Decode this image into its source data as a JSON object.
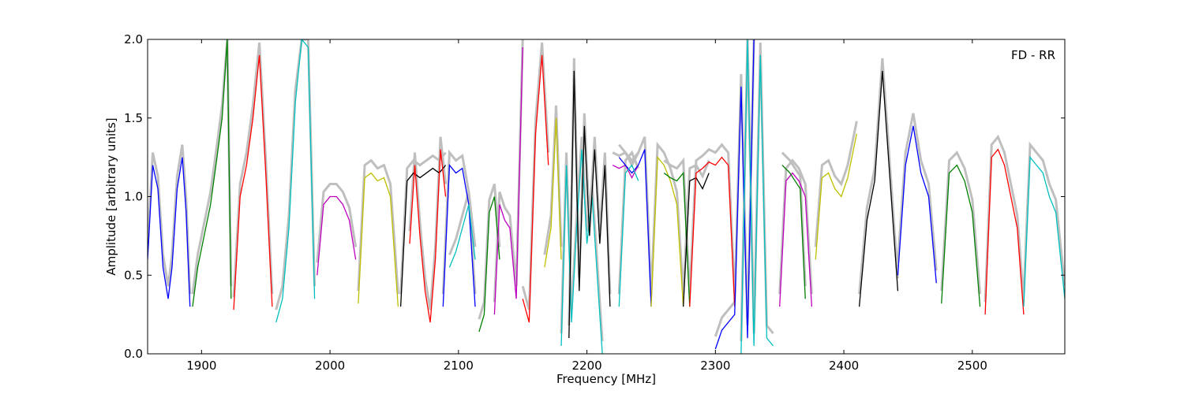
{
  "chart_data": {
    "type": "line",
    "title": "",
    "xlabel": "Frequency [MHz]",
    "ylabel": "Amplitude [arbitrary units]",
    "annotation": "FD - RR",
    "annotation_position": "top-right",
    "xlim": [
      1858,
      2572
    ],
    "ylim": [
      0.0,
      2.0
    ],
    "xticks": [
      1900,
      2000,
      2100,
      2200,
      2300,
      2400,
      2500
    ],
    "yticks": [
      0.0,
      0.5,
      1.0,
      1.5,
      2.0
    ],
    "xtick_labels": [
      "1900",
      "2000",
      "2100",
      "2200",
      "2300",
      "2400",
      "2500"
    ],
    "ytick_labels": [
      "0.0",
      "0.5",
      "1.0",
      "1.5",
      "2.0"
    ],
    "grid": false,
    "legend": false,
    "background_trace_color": "#bfbfbf",
    "series": [
      {
        "color": "#0000ff",
        "x": [
          1858,
          1862,
          1866,
          1870,
          1874,
          1877,
          1881,
          1885,
          1888,
          1891
        ],
        "y": [
          0.6,
          1.2,
          1.05,
          0.55,
          0.35,
          0.55,
          1.05,
          1.25,
          0.9,
          0.3
        ]
      },
      {
        "color": "#007f00",
        "x": [
          1893,
          1897,
          1902,
          1907,
          1912,
          1916,
          1920,
          1923
        ],
        "y": [
          0.3,
          0.55,
          0.75,
          0.95,
          1.25,
          1.5,
          2.0,
          0.35
        ]
      },
      {
        "color": "#ff0000",
        "x": [
          1925,
          1930,
          1935,
          1940,
          1945,
          1950,
          1955
        ],
        "y": [
          0.28,
          1.0,
          1.2,
          1.5,
          1.9,
          1.15,
          0.3
        ]
      },
      {
        "color": "#00bfbf",
        "x": [
          1958,
          1963,
          1968,
          1973,
          1978,
          1983,
          1988
        ],
        "y": [
          0.2,
          0.35,
          0.8,
          1.6,
          2.0,
          1.95,
          0.35
        ]
      },
      {
        "color": "#bf00bf",
        "x": [
          1990,
          1995,
          2000,
          2005,
          2010,
          2015,
          2020
        ],
        "y": [
          0.5,
          0.95,
          1.0,
          1.0,
          0.95,
          0.85,
          0.6
        ]
      },
      {
        "color": "#bfbf00",
        "x": [
          2022,
          2027,
          2032,
          2037,
          2042,
          2047,
          2053
        ],
        "y": [
          0.32,
          1.12,
          1.15,
          1.1,
          1.12,
          1.0,
          0.3
        ]
      },
      {
        "color": "#000000",
        "x": [
          2055,
          2060,
          2065,
          2070,
          2075,
          2080,
          2085,
          2090
        ],
        "y": [
          0.3,
          1.1,
          1.15,
          1.12,
          1.15,
          1.18,
          1.15,
          1.2
        ]
      },
      {
        "color": "#ff0000",
        "x": [
          2062,
          2066,
          2070,
          2074,
          2078,
          2082,
          2086,
          2090
        ],
        "y": [
          0.7,
          1.2,
          0.75,
          0.4,
          0.2,
          0.6,
          1.3,
          1.0
        ]
      },
      {
        "color": "#0000ff",
        "x": [
          2088,
          2093,
          2098,
          2103,
          2108,
          2113
        ],
        "y": [
          0.3,
          1.2,
          1.15,
          1.18,
          0.95,
          0.3
        ]
      },
      {
        "color": "#00bfbf",
        "x": [
          2093,
          2098,
          2103,
          2108,
          2113
        ],
        "y": [
          0.55,
          0.65,
          0.8,
          0.95,
          0.6
        ]
      },
      {
        "color": "#007f00",
        "x": [
          2116,
          2120,
          2124,
          2128,
          2132
        ],
        "y": [
          0.14,
          0.25,
          0.9,
          1.0,
          0.6
        ]
      },
      {
        "color": "#bf00bf",
        "x": [
          2128,
          2132,
          2136,
          2140,
          2145,
          2150
        ],
        "y": [
          0.25,
          0.95,
          0.85,
          0.8,
          0.35,
          1.95
        ]
      },
      {
        "color": "#ff0000",
        "x": [
          2150,
          2155,
          2160,
          2165,
          2170
        ],
        "y": [
          0.35,
          0.2,
          1.4,
          1.9,
          1.2
        ]
      },
      {
        "color": "#bfbf00",
        "x": [
          2167,
          2172,
          2176,
          2180
        ],
        "y": [
          0.55,
          0.8,
          1.5,
          0.6
        ]
      },
      {
        "color": "#00bfbf",
        "x": [
          2180,
          2184,
          2188,
          2192,
          2196,
          2200,
          2204,
          2208,
          2212
        ],
        "y": [
          0.05,
          1.2,
          0.2,
          0.8,
          1.3,
          0.7,
          1.0,
          0.5,
          0.0
        ]
      },
      {
        "color": "#000000",
        "x": [
          2186,
          2190,
          2194,
          2198,
          2202,
          2206,
          2210,
          2214,
          2218
        ],
        "y": [
          0.1,
          1.8,
          0.4,
          1.45,
          0.75,
          1.3,
          0.7,
          1.2,
          0.3
        ]
      },
      {
        "color": "#bf00bf",
        "x": [
          2220,
          2225,
          2230,
          2235,
          2240
        ],
        "y": [
          1.2,
          1.18,
          1.2,
          1.12,
          1.2
        ]
      },
      {
        "color": "#0000ff",
        "x": [
          2225,
          2230,
          2235,
          2240,
          2245,
          2250
        ],
        "y": [
          1.25,
          1.2,
          1.15,
          1.2,
          1.3,
          0.3
        ]
      },
      {
        "color": "#00bfbf",
        "x": [
          2225,
          2230,
          2235,
          2240
        ],
        "y": [
          0.3,
          1.15,
          1.2,
          1.1
        ]
      },
      {
        "color": "#bfbf00",
        "x": [
          2250,
          2255,
          2260,
          2265,
          2270,
          2275
        ],
        "y": [
          0.3,
          1.25,
          1.2,
          1.1,
          0.95,
          0.3
        ]
      },
      {
        "color": "#007f00",
        "x": [
          2260,
          2265,
          2270,
          2275,
          2280
        ],
        "y": [
          1.15,
          1.12,
          1.1,
          1.15,
          0.3
        ]
      },
      {
        "color": "#000000",
        "x": [
          2275,
          2280,
          2285,
          2290,
          2295
        ],
        "y": [
          0.3,
          1.1,
          1.12,
          1.05,
          1.15
        ]
      },
      {
        "color": "#ff0000",
        "x": [
          2280,
          2285,
          2290,
          2295,
          2300,
          2305,
          2310,
          2315
        ],
        "y": [
          0.3,
          1.15,
          1.18,
          1.22,
          1.2,
          1.25,
          1.2,
          0.3
        ]
      },
      {
        "color": "#0000ff",
        "x": [
          2300,
          2305,
          2310,
          2315,
          2320,
          2325,
          2330
        ],
        "y": [
          0.03,
          0.15,
          0.2,
          0.25,
          1.7,
          0.1,
          2.0
        ]
      },
      {
        "color": "#00bfbf",
        "x": [
          2320,
          2325,
          2330,
          2335,
          2340,
          2345
        ],
        "y": [
          0.0,
          2.0,
          0.05,
          1.9,
          0.1,
          0.05
        ]
      },
      {
        "color": "#bf00bf",
        "x": [
          2350,
          2355,
          2360,
          2365,
          2370,
          2375
        ],
        "y": [
          0.3,
          1.1,
          1.15,
          1.1,
          1.0,
          0.3
        ]
      },
      {
        "color": "#007f00",
        "x": [
          2352,
          2358,
          2362,
          2366,
          2370
        ],
        "y": [
          1.2,
          1.15,
          1.1,
          1.05,
          0.35
        ]
      },
      {
        "color": "#bfbf00",
        "x": [
          2378,
          2383,
          2388,
          2393,
          2398,
          2403,
          2410
        ],
        "y": [
          0.6,
          1.12,
          1.15,
          1.05,
          1.0,
          1.12,
          1.4
        ]
      },
      {
        "color": "#000000",
        "x": [
          2412,
          2418,
          2424,
          2430,
          2436,
          2442
        ],
        "y": [
          0.3,
          0.85,
          1.1,
          1.8,
          1.1,
          0.4
        ]
      },
      {
        "color": "#0000ff",
        "x": [
          2442,
          2448,
          2454,
          2460,
          2466,
          2472
        ],
        "y": [
          0.5,
          1.2,
          1.45,
          1.15,
          1.0,
          0.45
        ]
      },
      {
        "color": "#007f00",
        "x": [
          2476,
          2482,
          2488,
          2494,
          2500,
          2506
        ],
        "y": [
          0.32,
          1.15,
          1.2,
          1.1,
          0.9,
          0.3
        ]
      },
      {
        "color": "#ff0000",
        "x": [
          2510,
          2515,
          2520,
          2525,
          2530,
          2535,
          2540
        ],
        "y": [
          0.25,
          1.25,
          1.3,
          1.2,
          1.0,
          0.8,
          0.25
        ]
      },
      {
        "color": "#00bfbf",
        "x": [
          2540,
          2545,
          2550,
          2555,
          2560,
          2565,
          2572
        ],
        "y": [
          0.3,
          1.25,
          1.2,
          1.15,
          1.0,
          0.9,
          0.35
        ]
      }
    ]
  }
}
